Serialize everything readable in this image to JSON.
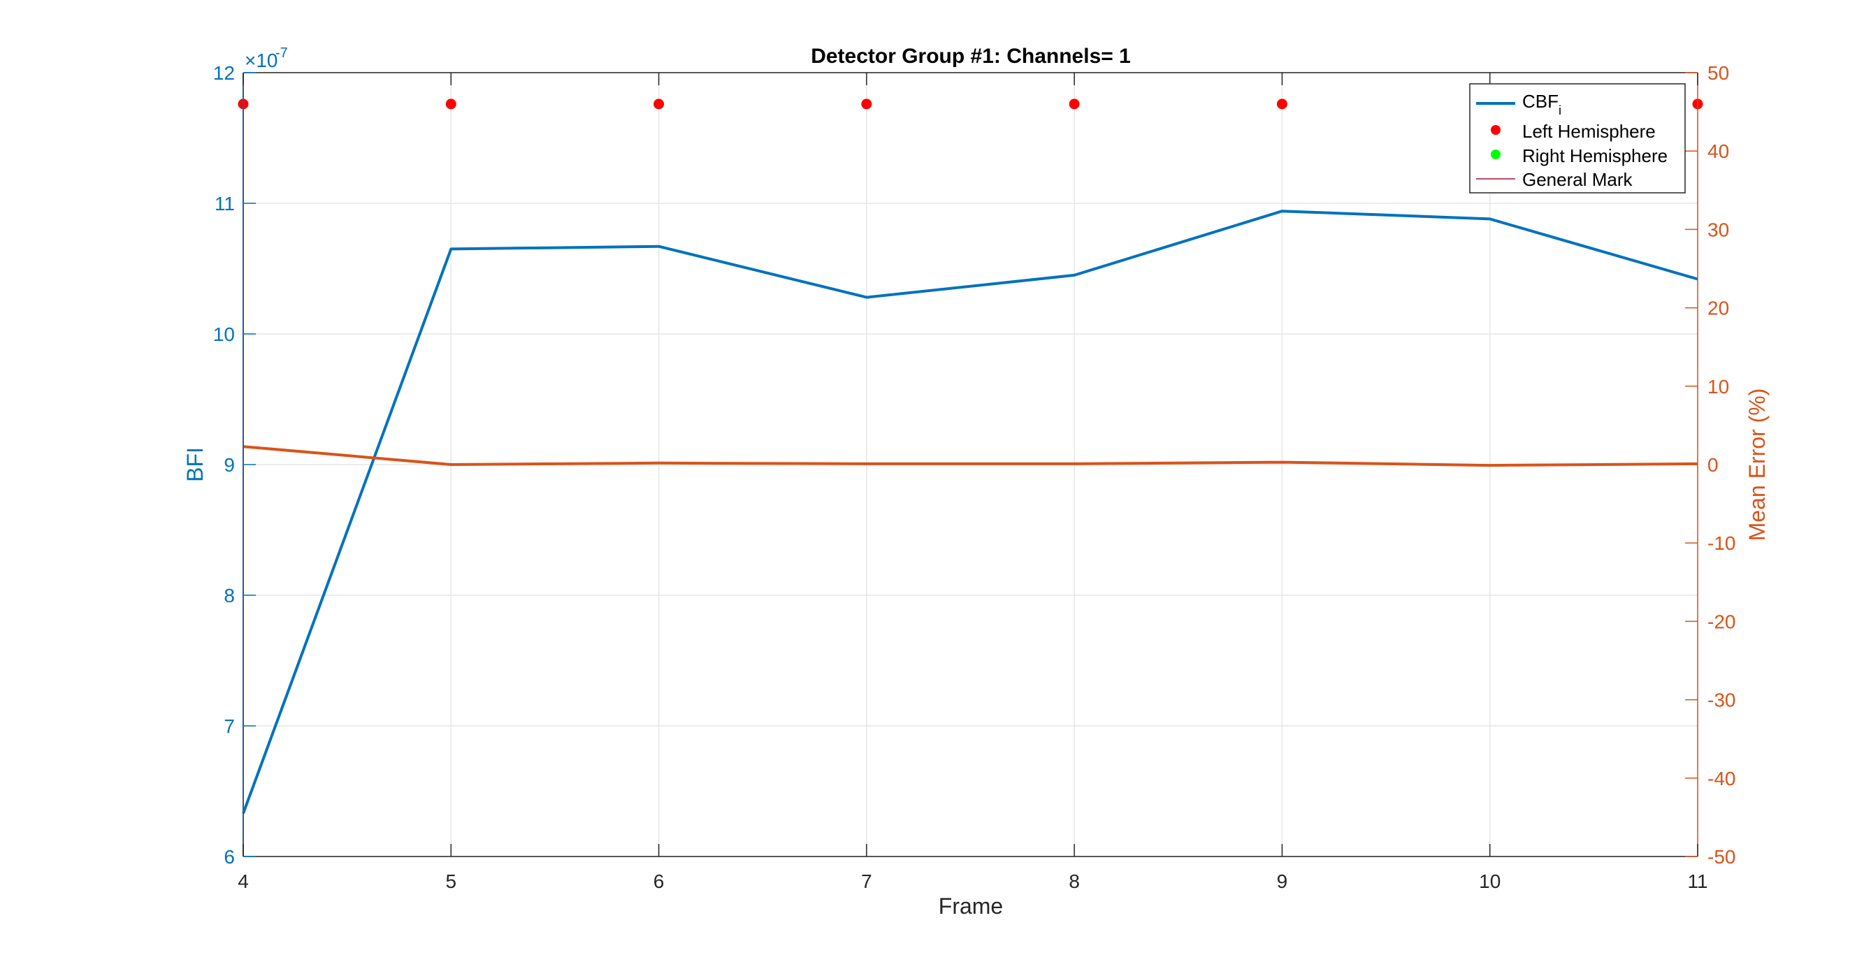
{
  "chart_data": {
    "type": "line",
    "title": "Detector Group #1: Channels= 1",
    "xlabel": "Frame",
    "ylabel_left": "BFI",
    "ylabel_right": "Mean Error (%)",
    "left_exponent_label": "×10",
    "left_exponent_power": "-7",
    "xlim": [
      4,
      11
    ],
    "ylim_left": [
      6,
      12
    ],
    "ylim_right": [
      -50,
      50
    ],
    "x_ticks": [
      4,
      5,
      6,
      7,
      8,
      9,
      10,
      11
    ],
    "x_tick_labels": [
      "4",
      "5",
      "6",
      "7",
      "8",
      "9",
      "10",
      "11"
    ],
    "y_left_ticks": [
      6,
      7,
      8,
      9,
      10,
      11,
      12
    ],
    "y_left_tick_labels": [
      "6",
      "7",
      "8",
      "9",
      "10",
      "11",
      "12"
    ],
    "y_right_ticks": [
      -50,
      -40,
      -30,
      -20,
      -10,
      0,
      10,
      20,
      30,
      40,
      50
    ],
    "y_right_tick_labels": [
      "-50",
      "-40",
      "-30",
      "-20",
      "-10",
      "0",
      "10",
      "20",
      "30",
      "40",
      "50"
    ],
    "grid": true,
    "legend_position": "top-right",
    "series": [
      {
        "name": "CBF",
        "name_sub": "i",
        "axis": "left",
        "color": "#0072BD",
        "x": [
          4,
          5,
          6,
          7,
          8,
          9,
          10,
          11
        ],
        "values": [
          6.33,
          10.65,
          10.67,
          10.28,
          10.45,
          10.94,
          10.88,
          10.42
        ]
      },
      {
        "name": "",
        "axis": "right",
        "color": "#D95319",
        "x": [
          4,
          5,
          6,
          7,
          8,
          9,
          10,
          11
        ],
        "values": [
          2.3,
          0.0,
          0.2,
          0.1,
          0.1,
          0.3,
          -0.1,
          0.1
        ]
      },
      {
        "name": "Left Hemisphere",
        "axis": "left",
        "marker": "dot",
        "color": "#FF0000",
        "x": [
          4,
          5,
          6,
          7,
          8,
          9,
          10,
          11
        ],
        "values": [
          11.76,
          11.76,
          11.76,
          11.76,
          11.76,
          11.76,
          11.76,
          11.76
        ]
      },
      {
        "name": "Right Hemisphere",
        "axis": "left",
        "marker": "dot",
        "color": "#00FF00",
        "x": [],
        "values": []
      },
      {
        "name": "General Mark",
        "axis": "left",
        "color": "#A2142F",
        "type": "vline",
        "x": [
          4
        ]
      }
    ],
    "colors": {
      "left_axis": "#0072BD",
      "right_axis": "#D95319",
      "grid": "#e6e6e6",
      "box": "#262626"
    }
  }
}
